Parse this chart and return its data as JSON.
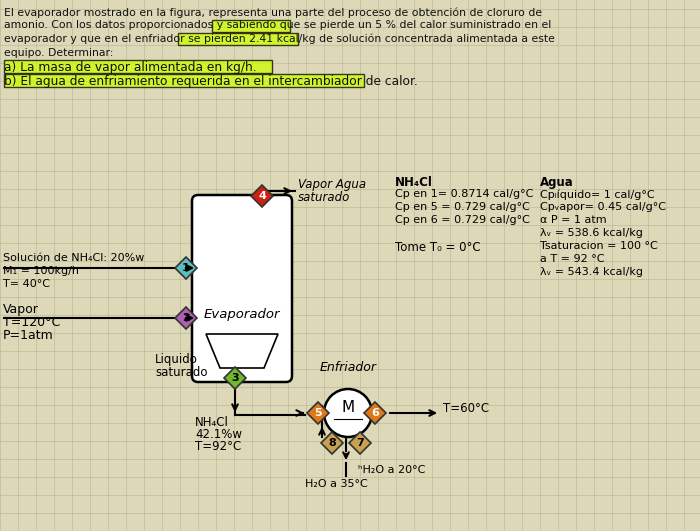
{
  "bg_color": "#ddd8b8",
  "grid_color": "#b8b490",
  "header_lines": [
    "El evaporador mostrado en la figura, representa una parte del proceso de obtención de cloruro de",
    "amonio. Con los datos proporcionados y sabiendo que se pierde un 5 % del calor suministrado en el",
    "evaporador y que en el enfriador se pierden 2.41 kcal/kg de solución concentrada alimentada a este",
    "equipo. Determinar:"
  ],
  "item_a": "a) La masa de vapor alimentada en kg/h.",
  "item_b": "b) El agua de enfriamiento requerida en el intercambiador de calor.",
  "highlight_color": "#ccff00",
  "node_colors": {
    "1": "#5dbcbc",
    "2": "#b060b0",
    "3": "#70b830",
    "4": "#cc2010",
    "5": "#e07818",
    "6": "#e07818",
    "7": "#c8a050",
    "8": "#c8a050"
  },
  "nh4cl_props": [
    "NH₄Cl",
    "Cp en 1= 0.8714 cal/g°C",
    "Cp en 5 = 0.729 cal/g°C",
    "Cp en 6 = 0.729 cal/g°C"
  ],
  "tome_t0": "Tome T₀ = 0°C",
  "agua_title": "Agua",
  "agua_props": [
    "Cpₗíquido= 1 cal/g°C",
    "Cpᵥapor= 0.45 cal/g°C",
    "α P = 1 atm",
    "λᵥ = 538.6 kcal/kg",
    "Tsaturacion = 100 °C",
    "a T = 92 °C",
    "λᵥ = 543.4 kcal/kg"
  ]
}
